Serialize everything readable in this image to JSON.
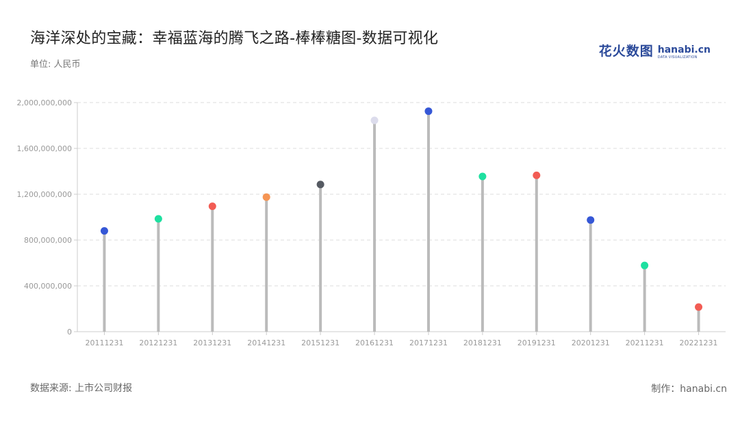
{
  "title": "海洋深处的宝藏：幸福蓝海的腾飞之路-棒棒糖图-数据可视化",
  "unit_label": "单位: 人民币",
  "logo": {
    "cn": "花火数图",
    "en": "hanabi.cn",
    "en_sub": "DATA VISUALIZATION"
  },
  "source": "数据来源: 上市公司财报",
  "credit": "制作：hanabi.cn",
  "chart_data": {
    "type": "lollipop",
    "categories": [
      "20111231",
      "20121231",
      "20131231",
      "20141231",
      "20151231",
      "20161231",
      "20171231",
      "20181231",
      "20191231",
      "20201231",
      "20211231",
      "20221231"
    ],
    "values": [
      880000000,
      985000000,
      1095000000,
      1175000000,
      1285000000,
      1845000000,
      1925000000,
      1355000000,
      1365000000,
      975000000,
      578000000,
      215000000
    ],
    "point_colors": [
      "#3557d6",
      "#1ee0a0",
      "#f25c54",
      "#f59554",
      "#555a62",
      "#dcdcec",
      "#3557d6",
      "#1ee0a0",
      "#f25c54",
      "#3557d6",
      "#1ee0a0",
      "#f25c54"
    ],
    "stem_color": "#bbbbbb",
    "yticks": [
      0,
      400000000,
      800000000,
      1200000000,
      1600000000,
      2000000000
    ],
    "ytick_labels": [
      "0",
      "400,000,000",
      "800,000,000",
      "1,200,000,000",
      "1,600,000,000",
      "2,000,000,000"
    ],
    "ylim": [
      0,
      2000000000
    ],
    "grid": true
  }
}
